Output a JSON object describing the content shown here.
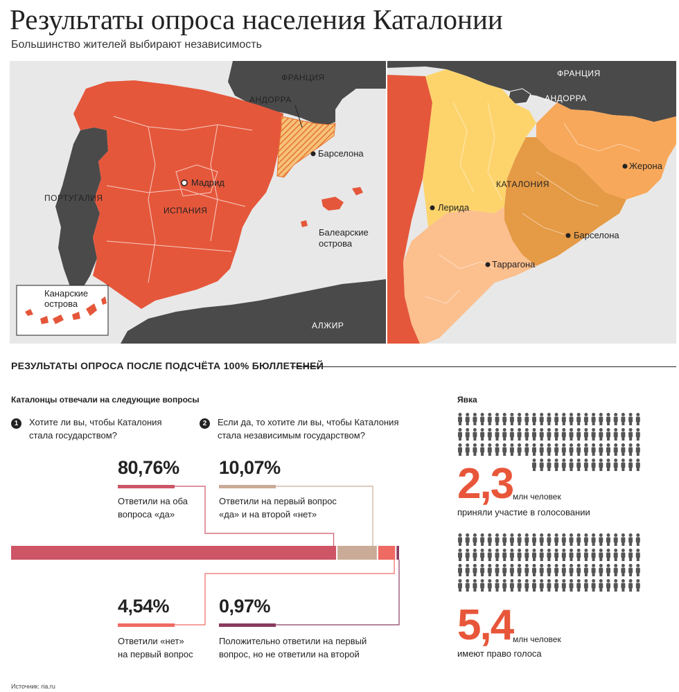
{
  "title": "Результаты опроса населения Каталонии",
  "subtitle": "Большинство жителей выбирают независимость",
  "map_left": {
    "labels": {
      "france": "ФРАНЦИЯ",
      "andorra": "АНДОРРА",
      "barcelona": "Барселона",
      "madrid": "Мадрид",
      "spain": "ИСПАНИЯ",
      "portugal": "ПОРТУГАЛИЯ",
      "balearic_line1": "Балеарские",
      "balearic_line2": "острова",
      "canary_line1": "Канарские",
      "canary_line2": "острова",
      "algeria": "АЛЖИР"
    }
  },
  "map_right": {
    "labels": {
      "france": "ФРАНЦИЯ",
      "andorra": "АНДОРРА",
      "catalonia": "КАТАЛОНИЯ",
      "girona": "Жерона",
      "lleida": "Лерида",
      "barcelona": "Барселона",
      "tarragona": "Таррагона"
    }
  },
  "colors": {
    "spain": "#e5573b",
    "land_dark": "#4a4a4a",
    "sea": "#e8e8e8",
    "lleida": "#fdd46c",
    "girona": "#f8a85a",
    "barcelona": "#e59a45",
    "tarragona": "#fcbf8e",
    "bar_both_yes": "#cd5566",
    "bar_yes_no": "#c9ab97",
    "bar_no": "#ef6a63",
    "bar_partial": "#8a3b60",
    "accent": "#e8563a"
  },
  "results": {
    "heading": "РЕЗУЛЬТАТЫ ОПРОСА ПОСЛЕ ПОДСЧЁТА 100% БЮЛЛЕТЕНЕЙ",
    "intro": "Каталонцы отвечали на следующие вопросы",
    "questions": [
      {
        "num": "1",
        "line1": "Хотите ли вы, чтобы Каталония",
        "line2": "стала государством?"
      },
      {
        "num": "2",
        "line1": "Если да, то хотите ли вы, чтобы Каталония",
        "line2": "стала независимым государством?"
      }
    ],
    "answers": [
      {
        "value": "80,76%",
        "share": 80.76,
        "line1": "Ответили на оба",
        "line2": "вопроса «да»"
      },
      {
        "value": "10,07%",
        "share": 10.07,
        "line1": "Ответили на первый вопрос",
        "line2": "«да» и на второй «нет»"
      },
      {
        "value": "4,54%",
        "share": 4.54,
        "line1": "Ответили «нет»",
        "line2": "на первый вопрос"
      },
      {
        "value": "0,97%",
        "share": 0.97,
        "line1": "Положительно ответили на первый",
        "line2": "вопрос, но не ответили на второй"
      }
    ]
  },
  "turnout": {
    "label": "Явка",
    "participated": {
      "value": "2,3",
      "unit": "млн человек",
      "desc": "приняли участие в голосовании"
    },
    "eligible": {
      "value": "5,4",
      "unit": "млн человек",
      "desc": "имеют право голоса"
    },
    "icon": "person-icon"
  },
  "source": "Источник: ria.ru"
}
